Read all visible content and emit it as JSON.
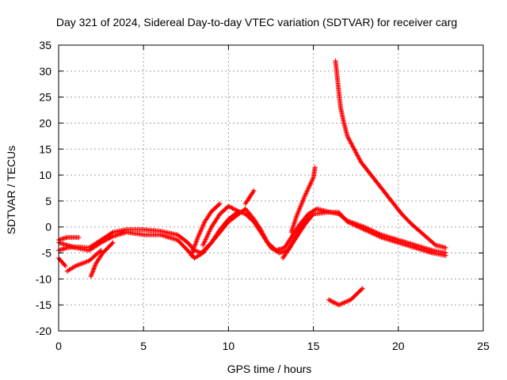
{
  "chart_data": {
    "type": "scatter",
    "title": "Day 321 of 2024, Sidereal Day-to-day VTEC variation (SDTVAR) for receiver carg",
    "xlabel": "GPS time / hours",
    "ylabel": "SDTVAR / TECUs",
    "xlim": [
      0,
      25
    ],
    "ylim": [
      -20,
      35
    ],
    "xticks": [
      0,
      5,
      10,
      15,
      20,
      25
    ],
    "yticks": [
      -20,
      -15,
      -10,
      -5,
      0,
      5,
      10,
      15,
      20,
      25,
      30,
      35
    ],
    "grid": true,
    "marker": "plus",
    "series": [
      {
        "name": "SDTVAR",
        "color": "#ff0000",
        "tracks": [
          [
            [
              0,
              -2.5
            ],
            [
              0.5,
              -2.0
            ],
            [
              1.2,
              -2.0
            ]
          ],
          [
            [
              0,
              -4.5
            ],
            [
              0.5,
              -4.0
            ],
            [
              1.0,
              -3.8
            ],
            [
              1.8,
              -4.0
            ],
            [
              2.5,
              -2.5
            ],
            [
              3.2,
              -1.0
            ],
            [
              4.0,
              -0.5
            ],
            [
              5.0,
              -0.5
            ],
            [
              6.0,
              -0.8
            ],
            [
              7.0,
              -1.5
            ],
            [
              7.6,
              -3.0
            ],
            [
              8.0,
              -4.5
            ],
            [
              8.4,
              -5.0
            ],
            [
              9.0,
              -3.0
            ],
            [
              9.5,
              -1.0
            ],
            [
              10.0,
              1.0
            ],
            [
              10.6,
              2.5
            ],
            [
              11.0,
              3.5
            ],
            [
              11.5,
              1.5
            ],
            [
              11.9,
              -0.5
            ],
            [
              12.3,
              -3.0
            ],
            [
              12.8,
              -4.5
            ],
            [
              13.3,
              -4.0
            ],
            [
              13.8,
              -1.5
            ],
            [
              14.2,
              0.5
            ],
            [
              14.7,
              2.5
            ],
            [
              15.2,
              3.5
            ],
            [
              15.8,
              3.0
            ],
            [
              16.5,
              2.5
            ],
            [
              17.0,
              1.2
            ],
            [
              18.0,
              0.0
            ],
            [
              19.0,
              -1.5
            ],
            [
              20.0,
              -2.5
            ],
            [
              21.0,
              -3.5
            ],
            [
              22.0,
              -4.5
            ],
            [
              22.8,
              -5.0
            ]
          ],
          [
            [
              0,
              -3.0
            ],
            [
              0.5,
              -3.5
            ],
            [
              1.0,
              -4.0
            ],
            [
              1.8,
              -4.5
            ],
            [
              2.5,
              -3.0
            ],
            [
              3.2,
              -1.8
            ],
            [
              4.0,
              -1.0
            ],
            [
              5.0,
              -1.5
            ],
            [
              6.0,
              -1.5
            ],
            [
              7.0,
              -2.5
            ],
            [
              7.6,
              -4.5
            ],
            [
              8.0,
              -6.0
            ],
            [
              8.5,
              -5.0
            ],
            [
              9.0,
              -3.0
            ],
            [
              9.5,
              -0.5
            ],
            [
              10.0,
              1.5
            ],
            [
              10.6,
              3.0
            ],
            [
              11.0,
              2.5
            ],
            [
              11.5,
              1.0
            ],
            [
              12.0,
              -1.5
            ],
            [
              12.5,
              -4.0
            ],
            [
              13.0,
              -5.0
            ],
            [
              13.5,
              -4.5
            ],
            [
              14.0,
              -2.0
            ],
            [
              14.5,
              0.5
            ],
            [
              15.0,
              2.5
            ],
            [
              15.8,
              2.8
            ],
            [
              16.5,
              2.8
            ],
            [
              17.0,
              1.0
            ],
            [
              18.0,
              -0.5
            ],
            [
              19.0,
              -2.0
            ],
            [
              20.0,
              -3.0
            ],
            [
              21.0,
              -4.0
            ],
            [
              22.0,
              -5.0
            ],
            [
              22.8,
              -5.5
            ]
          ],
          [
            [
              0,
              -6.0
            ],
            [
              0.4,
              -7.5
            ]
          ],
          [
            [
              0.5,
              -8.5
            ],
            [
              1.0,
              -7.5
            ],
            [
              1.8,
              -6.5
            ],
            [
              2.5,
              -4.5
            ]
          ],
          [
            [
              1.9,
              -9.5
            ],
            [
              2.2,
              -7.0
            ],
            [
              2.6,
              -5.0
            ],
            [
              3.2,
              -3.0
            ]
          ],
          [
            [
              7.8,
              -5.5
            ],
            [
              8.2,
              -2.0
            ],
            [
              8.6,
              1.0
            ],
            [
              9.0,
              3.0
            ],
            [
              9.5,
              4.5
            ]
          ],
          [
            [
              8.5,
              -3.5
            ],
            [
              9.0,
              0.0
            ],
            [
              9.5,
              2.5
            ],
            [
              10.0,
              4.0
            ],
            [
              10.6,
              3.0
            ]
          ],
          [
            [
              11.0,
              4.5
            ],
            [
              11.3,
              6.0
            ],
            [
              11.5,
              7.0
            ]
          ],
          [
            [
              13.2,
              -6.0
            ],
            [
              13.6,
              -4.0
            ],
            [
              14.0,
              -1.5
            ],
            [
              14.5,
              1.0
            ],
            [
              14.8,
              2.0
            ]
          ],
          [
            [
              13.7,
              -1.0
            ],
            [
              14.0,
              2.0
            ],
            [
              14.5,
              6.0
            ],
            [
              15.0,
              9.5
            ],
            [
              15.1,
              11.5
            ]
          ],
          [
            [
              16.3,
              32.0
            ],
            [
              16.4,
              29.0
            ],
            [
              16.5,
              26.0
            ],
            [
              16.6,
              23.0
            ],
            [
              16.8,
              20.0
            ],
            [
              17.0,
              17.5
            ],
            [
              17.4,
              15.0
            ],
            [
              17.8,
              12.5
            ],
            [
              18.4,
              10.0
            ],
            [
              19.0,
              7.5
            ],
            [
              19.6,
              5.0
            ],
            [
              20.2,
              2.5
            ],
            [
              20.8,
              0.5
            ],
            [
              21.5,
              -1.5
            ],
            [
              22.2,
              -3.5
            ],
            [
              22.8,
              -4.0
            ]
          ],
          [
            [
              15.9,
              -14.0
            ],
            [
              16.5,
              -15.0
            ],
            [
              17.2,
              -14.0
            ],
            [
              17.9,
              -11.8
            ]
          ]
        ]
      }
    ]
  }
}
